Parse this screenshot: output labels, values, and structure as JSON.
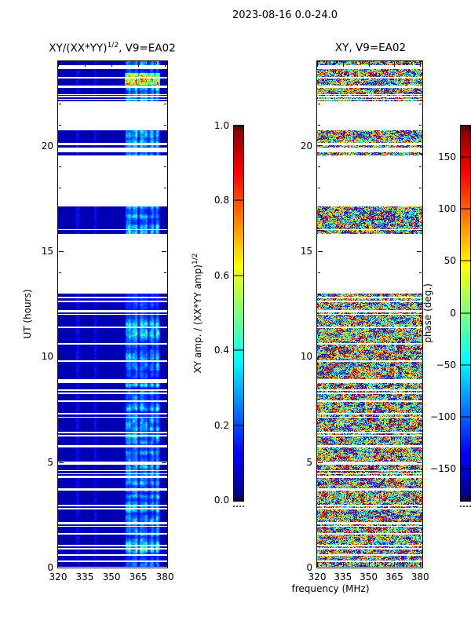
{
  "figure": {
    "title": "2023-08-16 0.0-24.0"
  },
  "left_panel": {
    "title_prefix": "XY/(XX*YY)",
    "title_sup": "1/2",
    "title_suffix": ", V9=EA02"
  },
  "right_panel": {
    "title": "XY, V9=EA02"
  },
  "axes": {
    "x_label": "frequency (MHz)",
    "y_label": "UT (hours)",
    "x_tick_labels": [
      "320",
      "335",
      "350",
      "365",
      "380"
    ],
    "x_tick_values": [
      320,
      335,
      350,
      365,
      380
    ],
    "x_minor_step": 5,
    "y_tick_labels": [
      "0",
      "5",
      "10",
      "15",
      "20"
    ],
    "y_tick_values": [
      0,
      5,
      10,
      15,
      20
    ],
    "y_minor_step": 1
  },
  "amp_colorbar": {
    "label_prefix": "XY amp. / (XX*YY amp)",
    "label_sup": "1/2",
    "tick_labels": [
      "0.0",
      "0.2",
      "0.4",
      "0.6",
      "0.8",
      "1.0"
    ],
    "tick_values": [
      0.0,
      0.2,
      0.4,
      0.6,
      0.8,
      1.0
    ],
    "min": 0.0,
    "max": 1.0
  },
  "phase_colorbar": {
    "label": "phase (deg.)",
    "tick_labels": [
      "150",
      "100",
      "50",
      "0",
      "−50",
      "−100",
      "−150"
    ],
    "tick_values": [
      150,
      100,
      50,
      0,
      -50,
      -100,
      -150
    ],
    "min": -180,
    "max": 180
  },
  "chart_data": {
    "type": "heatmap",
    "title": "2023-08-16 0.0-24.0",
    "x_axis": {
      "label": "frequency (MHz)",
      "range_mhz": [
        320,
        381.3
      ],
      "major_ticks": [
        320,
        335,
        350,
        365,
        380
      ],
      "minor_step_mhz": 5
    },
    "y_axis": {
      "label": "UT (hours)",
      "range_hours": [
        0,
        24
      ],
      "major_ticks": [
        0,
        5,
        10,
        15,
        20
      ],
      "minor_step_hours": 1
    },
    "colormap": "jet",
    "panels": [
      {
        "name": "XY/(XX*YY)^1/2, V9=EA02",
        "quantity": "normalized XY amplitude",
        "value_range": [
          0,
          1
        ],
        "description": "dark navy (~0.02-0.1) below 357 MHz with faint brighter lines at 331 and 341 MHz; structured bright columns (0.2-0.9, cyan/green/yellow, orange burst near UT 23.1) between ~358-377 MHz"
      },
      {
        "name": "XY, V9=EA02",
        "quantity": "XY phase (deg.)",
        "value_range": [
          -180,
          180
        ],
        "description": "noisy phase speckle over all frequencies with coherent wrapped red/blue patches"
      }
    ],
    "time_blocks": [
      {
        "ut": [
          22.1,
          24.0
        ],
        "gaps": [
          [
            23.72,
            0.16
          ],
          [
            23.22,
            0.1
          ],
          [
            22.78,
            0.1
          ],
          [
            22.42,
            0.05
          ],
          [
            22.32,
            0.05
          ],
          [
            22.21,
            0.04
          ]
        ]
      },
      {
        "ut": [
          19.9,
          20.72
        ],
        "gaps": [
          [
            20.08,
            0.1
          ]
        ]
      },
      {
        "ut": [
          19.55,
          19.7
        ],
        "gaps": []
      },
      {
        "ut": [
          15.83,
          17.12
        ],
        "gaps": [
          [
            16.02,
            0.07
          ]
        ]
      },
      {
        "ut": [
          0.02,
          12.98
        ],
        "gaps": [
          [
            12.8,
            0.08
          ],
          [
            12.62,
            0.06
          ],
          [
            12.15,
            0.08
          ],
          [
            12.0,
            0.06
          ],
          [
            11.4,
            0.08
          ],
          [
            10.6,
            0.08
          ],
          [
            9.8,
            0.08
          ],
          [
            8.85,
            0.18
          ],
          [
            8.4,
            0.08
          ],
          [
            8.25,
            0.06
          ],
          [
            7.9,
            0.08
          ],
          [
            7.3,
            0.08
          ],
          [
            7.12,
            0.06
          ],
          [
            6.4,
            0.08
          ],
          [
            6.25,
            0.06
          ],
          [
            5.75,
            0.08
          ],
          [
            4.95,
            0.16
          ],
          [
            4.6,
            0.06
          ],
          [
            4.45,
            0.06
          ],
          [
            4.3,
            0.08
          ],
          [
            3.7,
            0.08
          ],
          [
            2.95,
            0.08
          ],
          [
            2.8,
            0.06
          ],
          [
            2.1,
            0.08
          ],
          [
            1.95,
            0.06
          ],
          [
            1.6,
            0.08
          ],
          [
            1.05,
            0.08
          ],
          [
            0.9,
            0.06
          ],
          [
            0.6,
            0.08
          ],
          [
            0.3,
            0.06
          ]
        ]
      }
    ],
    "bright_band_mhz": [
      357.5,
      377.5
    ],
    "band_column_dips_mhz": [
      365.3,
      370.8,
      374.3
    ],
    "faint_lines_mhz": [
      331,
      341
    ],
    "orange_burst_ut": [
      22.9,
      23.45
    ],
    "seed": 20230816
  }
}
